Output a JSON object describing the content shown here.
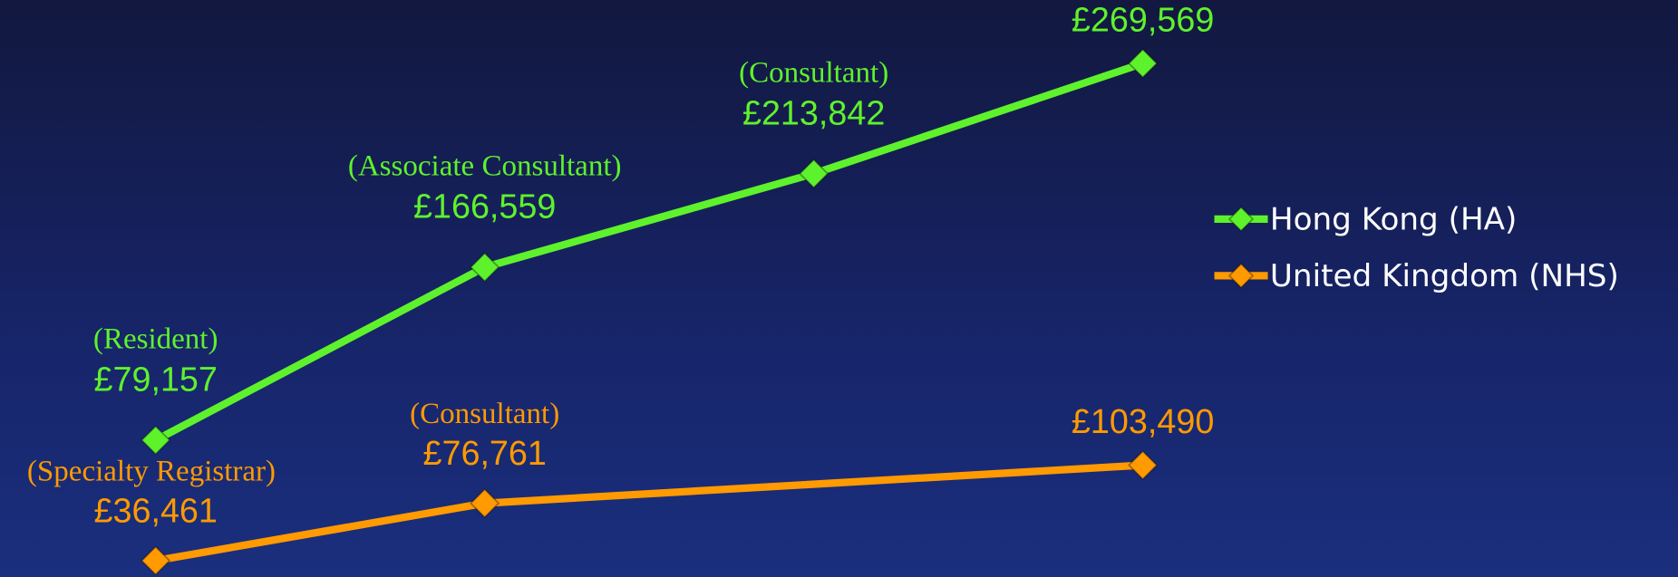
{
  "chart_data": {
    "type": "line",
    "categories": [
      null,
      null,
      null,
      null
    ],
    "ylim": [
      10000,
      280000
    ],
    "y2lim": [
      25000,
      400000
    ],
    "span_gaps": true,
    "legend": "right",
    "series": [
      {
        "name": "Hong Kong (HA)",
        "color": "#5ef22c",
        "values": [
          79157,
          166559,
          213842,
          269569
        ],
        "value_labels": [
          "£79,157",
          "£166,559",
          "£213,842",
          "£269,569"
        ],
        "point_labels": [
          "(Resident)",
          "(Associate Consultant)",
          "(Consultant)",
          null
        ]
      },
      {
        "name": "United Kingdom (NHS)",
        "color": "#ff9a00",
        "axis": "y2",
        "values": [
          36461,
          76761,
          null,
          103490
        ],
        "value_labels": [
          "£36,461",
          "£76,761",
          null,
          "£103,490"
        ],
        "point_labels": [
          "(Specialty Registrar)",
          "(Consultant)",
          null,
          null
        ]
      }
    ]
  }
}
